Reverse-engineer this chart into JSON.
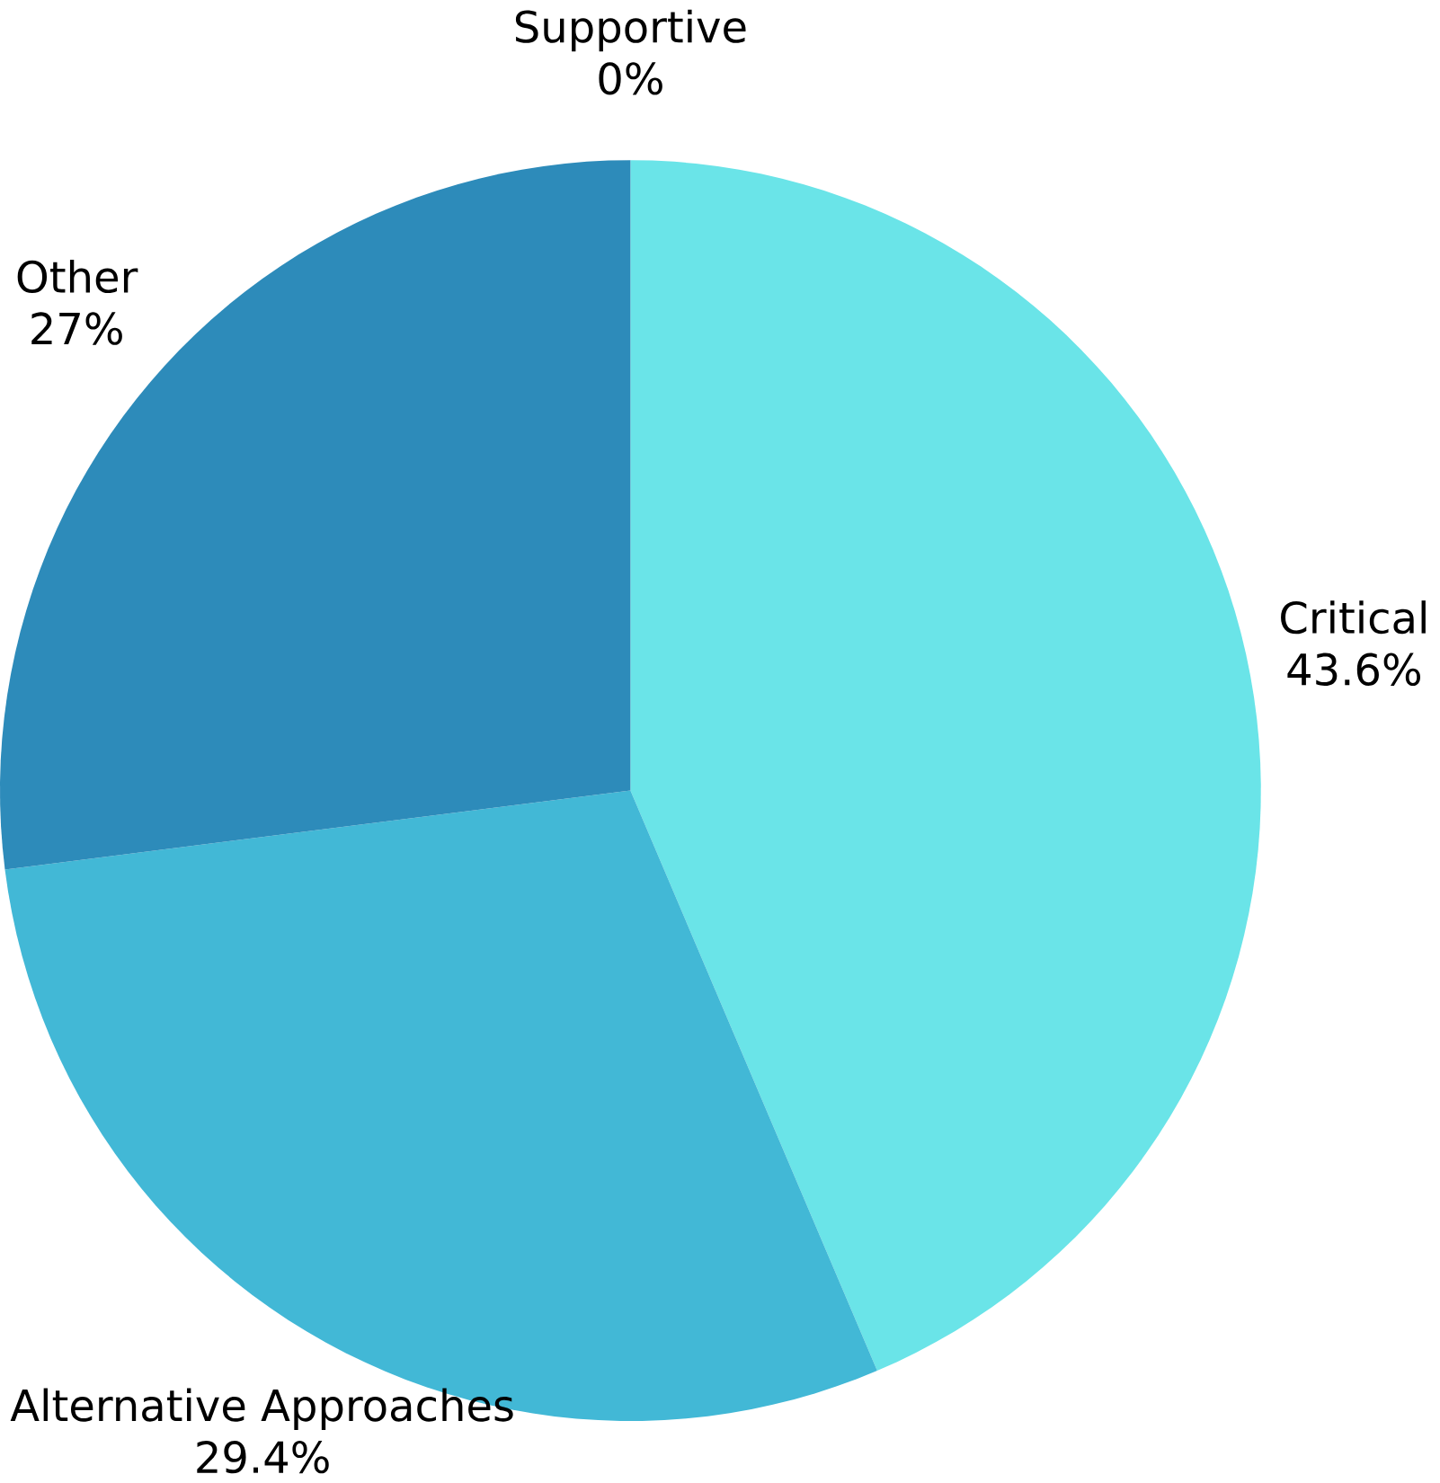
{
  "chart_data": {
    "type": "pie",
    "categories": [
      "Critical",
      "Alternative Approaches",
      "Other",
      "Supportive"
    ],
    "values": [
      43.6,
      29.4,
      27,
      0
    ],
    "colors": [
      "#6ae4e8",
      "#42b8d6",
      "#2d8bba",
      "#1f6a99"
    ],
    "value_labels": [
      "43.6%",
      "29.4%",
      "27%",
      "0%"
    ]
  }
}
